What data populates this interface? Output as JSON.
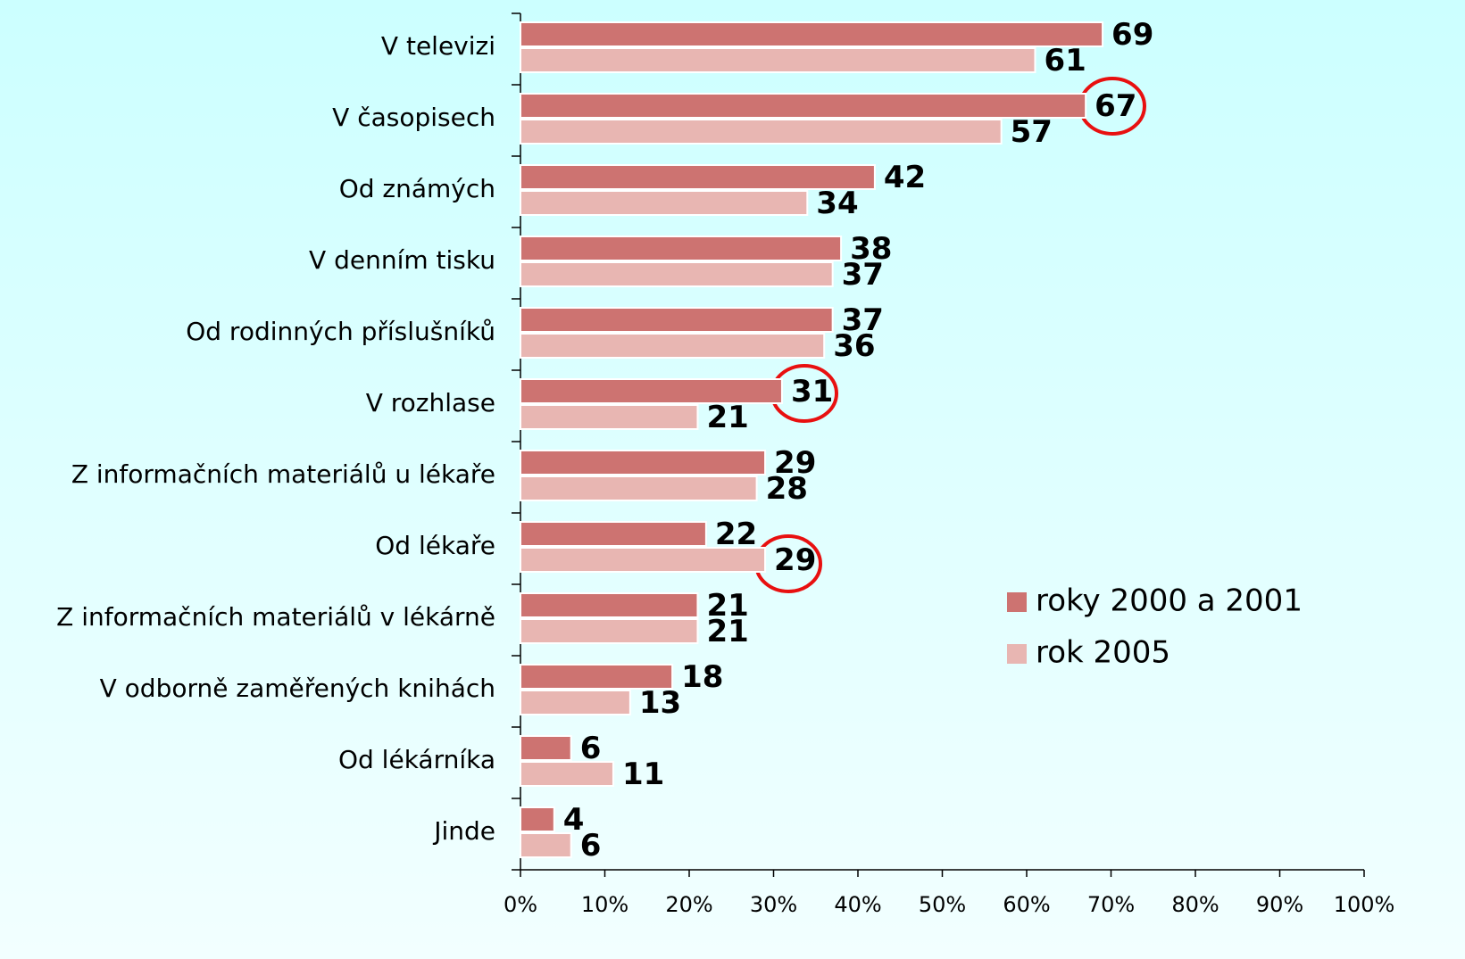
{
  "chart_data": {
    "type": "barh",
    "categories": [
      "V televizi",
      "V časopisech",
      "Od známých",
      "V denním tisku",
      "Od rodinných příslušníků",
      "V rozhlase",
      "Z informačních materiálů u lékaře",
      "Od lékaře",
      "Z informačních materiálů v lékárně",
      "V odborně zaměřených knihách",
      "Od lékárníka",
      "Jinde"
    ],
    "series": [
      {
        "name": "roky 2000 a 2001",
        "color": "#cd7371",
        "values": [
          69,
          67,
          42,
          38,
          37,
          31,
          29,
          22,
          21,
          18,
          6,
          4
        ]
      },
      {
        "name": "rok 2005",
        "color": "#e8b6b2",
        "values": [
          61,
          57,
          34,
          37,
          36,
          21,
          28,
          29,
          21,
          13,
          11,
          6
        ]
      }
    ],
    "xlim": [
      0,
      100
    ],
    "xticks": [
      {
        "value": 0,
        "label": "0%"
      },
      {
        "value": 10,
        "label": "10%"
      },
      {
        "value": 20,
        "label": "20%"
      },
      {
        "value": 30,
        "label": "30%"
      },
      {
        "value": 40,
        "label": "40%"
      },
      {
        "value": 50,
        "label": "50%"
      },
      {
        "value": 60,
        "label": "60%"
      },
      {
        "value": 70,
        "label": "70%"
      },
      {
        "value": 80,
        "label": "80%"
      },
      {
        "value": 90,
        "label": "90%"
      },
      {
        "value": 100,
        "label": "100%"
      }
    ],
    "legend": "right"
  }
}
